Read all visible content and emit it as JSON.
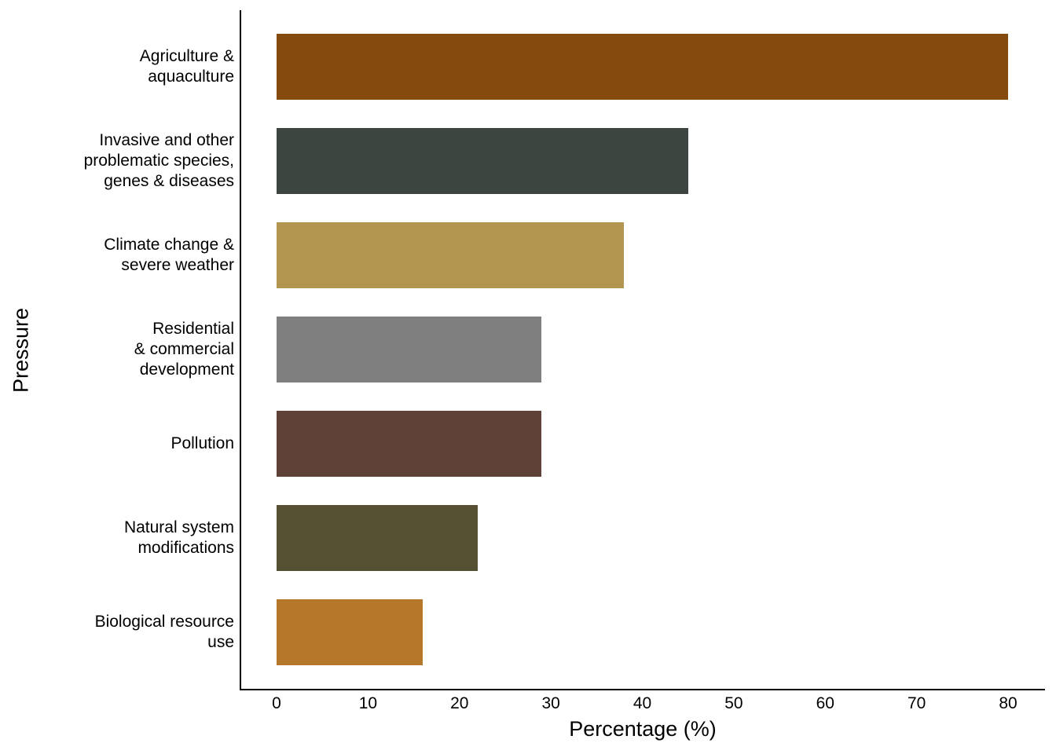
{
  "chart_data": {
    "type": "bar",
    "orientation": "horizontal",
    "title": "",
    "xlabel": "Percentage (%)",
    "ylabel": "Pressure",
    "xlim": [
      0,
      80
    ],
    "x_ticks": [
      0,
      10,
      20,
      30,
      40,
      50,
      60,
      70,
      80
    ],
    "grid": false,
    "legend": false,
    "background_color": "#FFFFFF",
    "axis_color": "#000000",
    "text_color": "#000000",
    "bar_width_fraction": 0.7,
    "categories": [
      "Agriculture & aquaculture",
      "Invasive and other problematic species, genes & diseases",
      "Climate change & severe weather",
      "Residential & commercial development",
      "Pollution",
      "Natural system modifications",
      "Biological resource use"
    ],
    "bars": [
      {
        "category": "Agriculture & aquaculture",
        "label_lines": [
          "Agriculture &",
          "aquaculture"
        ],
        "value": 80,
        "color": "#854B0E"
      },
      {
        "category": "Invasive and other problematic species, genes & diseases",
        "label_lines": [
          "Invasive and other",
          "problematic species,",
          "genes & diseases"
        ],
        "value": 45,
        "color": "#3D4540"
      },
      {
        "category": "Climate change & severe weather",
        "label_lines": [
          "Climate change &",
          "severe weather"
        ],
        "value": 38,
        "color": "#B2954E"
      },
      {
        "category": "Residential & commercial development",
        "label_lines": [
          "Residential",
          "& commercial",
          "development"
        ],
        "value": 29,
        "color": "#7F7F7F"
      },
      {
        "category": "Pollution",
        "label_lines": [
          "Pollution"
        ],
        "value": 29,
        "color": "#5F4138"
      },
      {
        "category": "Natural system modifications",
        "label_lines": [
          "Natural system",
          "modifications"
        ],
        "value": 22,
        "color": "#555031"
      },
      {
        "category": "Biological resource use",
        "label_lines": [
          "Biological resource",
          "use"
        ],
        "value": 16,
        "color": "#B5782A"
      }
    ]
  }
}
